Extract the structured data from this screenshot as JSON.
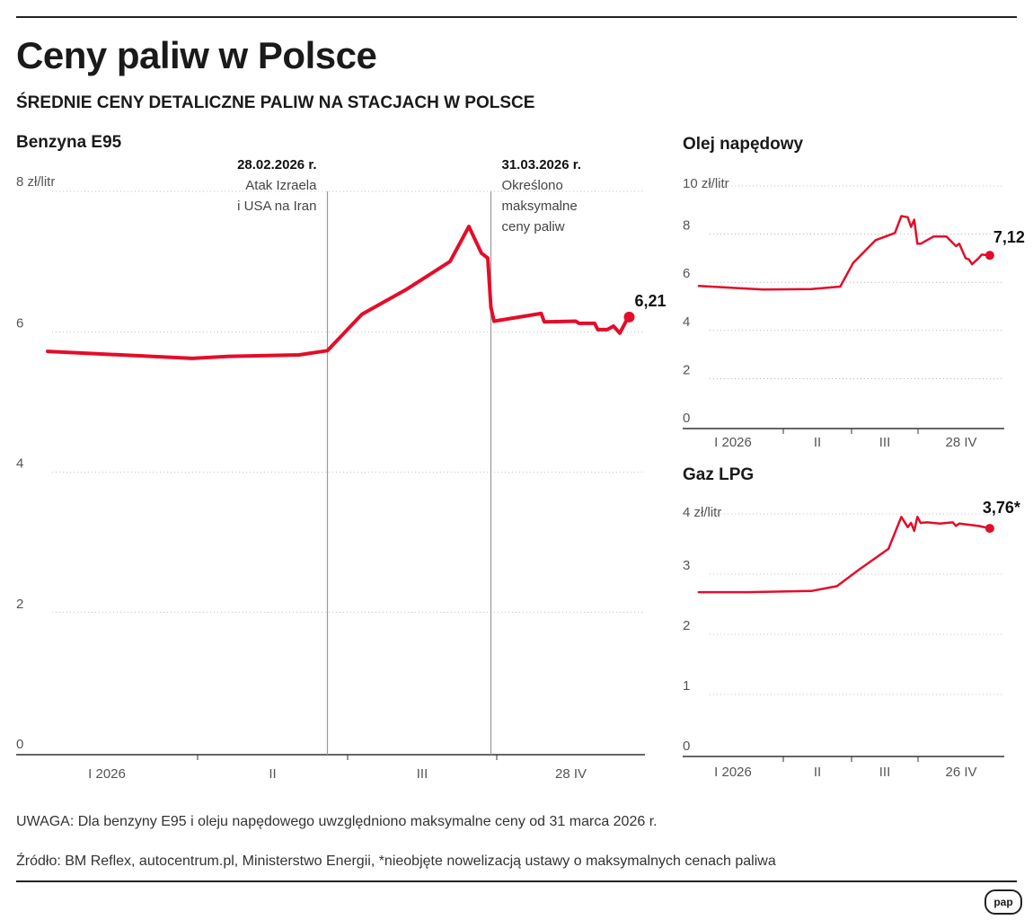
{
  "title": "Ceny paliw w Polsce",
  "subtitle": "ŚREDNIE CENY DETALICZNE PALIW NA STACJACH W POLSCE",
  "colors": {
    "line": "#e30d2a",
    "axis": "#333333",
    "grid": "#888888"
  },
  "chart_data": [
    {
      "type": "line",
      "title": "Benzyna E95",
      "unit_label": "8 zł/litr",
      "ylim": [
        0,
        8
      ],
      "y_ticks": [
        "0",
        "2",
        "4",
        "6"
      ],
      "x_tick_labels": [
        "I 2026",
        "II",
        "III",
        "28 IV"
      ],
      "x_domain": [
        0,
        100
      ],
      "annotations": [
        {
          "x": 49.5,
          "date": "28.02.2026 r.",
          "lines": [
            "Atak Izraela",
            "i USA na Iran"
          ]
        },
        {
          "x": 75.5,
          "date": "31.03.2026 r.",
          "lines": [
            "Określono",
            "maksymalne",
            "ceny paliw"
          ]
        }
      ],
      "end_label": "6,21",
      "x": [
        5,
        28,
        34,
        45,
        49.5,
        55,
        62,
        69,
        72,
        74,
        75,
        75.5,
        76,
        83.5,
        84,
        89,
        89.5,
        92,
        92.5,
        94,
        95,
        96,
        97,
        97.5
      ],
      "y": [
        5.72,
        5.62,
        5.65,
        5.67,
        5.73,
        6.25,
        6.6,
        7.0,
        7.5,
        7.12,
        7.05,
        6.35,
        6.15,
        6.26,
        6.14,
        6.15,
        6.12,
        6.12,
        6.03,
        6.03,
        6.08,
        5.98,
        6.15,
        6.21
      ]
    },
    {
      "type": "line",
      "title": "Olej napędowy",
      "unit_label": "10 zł/litr",
      "ylim": [
        0,
        10
      ],
      "y_ticks": [
        "0",
        "2",
        "4",
        "6",
        "8"
      ],
      "x_tick_labels": [
        "I 2026",
        "II",
        "III",
        "28 IV"
      ],
      "x_domain": [
        0,
        100
      ],
      "end_label": "7,12",
      "x": [
        5,
        25,
        40,
        49,
        53,
        60,
        66,
        68,
        70,
        71,
        72,
        73,
        74,
        78,
        82,
        85,
        86,
        88,
        89,
        90,
        92,
        93,
        95.5
      ],
      "y": [
        5.85,
        5.7,
        5.72,
        5.82,
        6.8,
        7.75,
        8.05,
        8.75,
        8.7,
        8.3,
        8.6,
        7.6,
        7.6,
        7.9,
        7.9,
        7.5,
        7.6,
        7.0,
        6.95,
        6.75,
        7.0,
        7.15,
        7.12
      ]
    },
    {
      "type": "line",
      "title": "Gaz LPG",
      "unit_label": "4 zł/litr",
      "ylim": [
        0,
        4
      ],
      "y_ticks": [
        "0",
        "1",
        "2",
        "3"
      ],
      "x_tick_labels": [
        "I 2026",
        "II",
        "III",
        "26 IV"
      ],
      "x_domain": [
        0,
        100
      ],
      "end_label": "3,76*",
      "x": [
        5,
        20,
        40,
        48,
        55,
        64,
        68,
        70,
        71,
        72,
        73,
        74,
        76,
        80,
        84,
        85,
        86,
        92,
        95.5
      ],
      "y": [
        2.7,
        2.7,
        2.72,
        2.8,
        3.08,
        3.42,
        3.95,
        3.78,
        3.85,
        3.72,
        3.95,
        3.85,
        3.86,
        3.84,
        3.86,
        3.8,
        3.84,
        3.8,
        3.76
      ]
    }
  ],
  "notes": {
    "uwaga": "UWAGA: Dla benzyny E95 i oleju napędowego uwzględniono maksymalne ceny od 31 marca 2026 r.",
    "source": "Źródło: BM Reflex, autocentrum.pl, Ministerstwo Energii, *nieobjęte nowelizacją ustawy o maksymalnych cenach paliwa"
  },
  "logo": "pap"
}
